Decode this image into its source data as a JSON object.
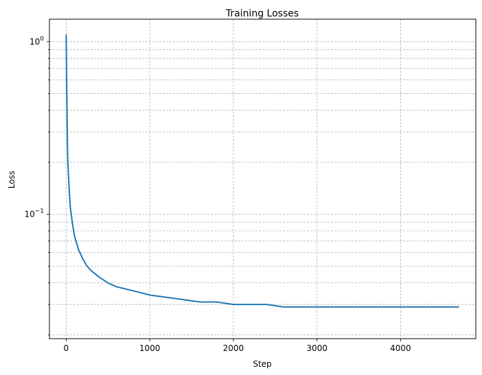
{
  "chart_data": {
    "type": "line",
    "title": "Training Losses",
    "xlabel": "Step",
    "ylabel": "Loss",
    "yscale": "log",
    "xlim": [
      -200,
      4900
    ],
    "ylim": [
      0.019,
      1.35
    ],
    "grid": true,
    "x_ticks": [
      {
        "value": 0,
        "label": "0"
      },
      {
        "value": 1000,
        "label": "1000"
      },
      {
        "value": 2000,
        "label": "2000"
      },
      {
        "value": 3000,
        "label": "3000"
      },
      {
        "value": 4000,
        "label": "4000"
      }
    ],
    "y_ticks": [
      {
        "value": 0.1,
        "base": "10",
        "exp": "−1"
      },
      {
        "value": 1,
        "base": "10",
        "exp": "0"
      }
    ],
    "series": [
      {
        "color": "#1f77b4",
        "x": [
          0,
          5,
          10,
          15,
          20,
          30,
          40,
          50,
          60,
          80,
          100,
          125,
          150,
          200,
          250,
          300,
          400,
          500,
          600,
          700,
          800,
          900,
          1000,
          1200,
          1400,
          1600,
          1800,
          2000,
          2200,
          2400,
          2600,
          2800,
          3000,
          3200,
          3400,
          3600,
          3800,
          4000,
          4200,
          4400,
          4600,
          4700
        ],
        "y": [
          1.1,
          0.6,
          0.4,
          0.26,
          0.2,
          0.16,
          0.13,
          0.11,
          0.1,
          0.085,
          0.075,
          0.068,
          0.062,
          0.055,
          0.05,
          0.047,
          0.043,
          0.04,
          0.038,
          0.037,
          0.036,
          0.035,
          0.034,
          0.033,
          0.032,
          0.031,
          0.031,
          0.03,
          0.03,
          0.03,
          0.029,
          0.029,
          0.029,
          0.029,
          0.029,
          0.029,
          0.029,
          0.029,
          0.029,
          0.029,
          0.029,
          0.029
        ]
      }
    ]
  }
}
